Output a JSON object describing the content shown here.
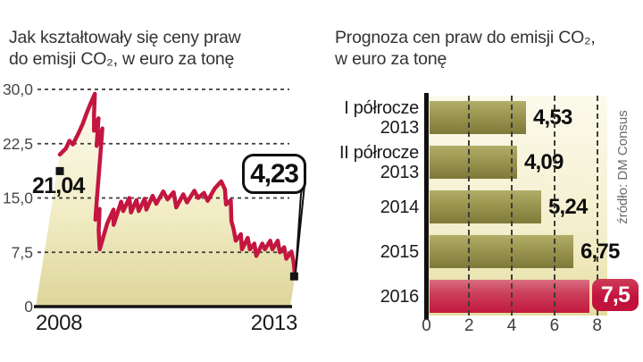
{
  "left_chart": {
    "title_line1": "Jak kształtowały się ceny praw",
    "title_line2": "do emisji CO₂, w euro za tonę",
    "y_ticks": [
      "30,0",
      "22,5",
      "15,0",
      "7,5",
      "0"
    ],
    "x_labels": {
      "start": "2008",
      "end": "2013"
    },
    "start_label": "21,04",
    "callout_label": "4,23"
  },
  "right_chart": {
    "title_line1": "Prognoza cen praw do emisji CO₂,",
    "title_line2": "w euro za tonę",
    "rows": [
      {
        "label_lines": [
          "I półrocze",
          "2013"
        ],
        "value": 4.53,
        "display": "4,53",
        "highlight": false
      },
      {
        "label_lines": [
          "II półrocze",
          "2013"
        ],
        "value": 4.09,
        "display": "4,09",
        "highlight": false
      },
      {
        "label_lines": [
          "2014"
        ],
        "value": 5.24,
        "display": "5,24",
        "highlight": false
      },
      {
        "label_lines": [
          "2015"
        ],
        "value": 6.75,
        "display": "6,75",
        "highlight": false
      },
      {
        "label_lines": [
          "2016"
        ],
        "value": 7.5,
        "display": "7,5",
        "highlight": true
      }
    ],
    "x_ticks": [
      {
        "label": "0",
        "value": 0
      },
      {
        "label": "2",
        "value": 2
      },
      {
        "label": "4",
        "value": 4
      },
      {
        "label": "6",
        "value": 6
      },
      {
        "label": "8",
        "value": 8
      }
    ],
    "source": "źródło: DM Consus"
  },
  "chart_data": [
    {
      "type": "area",
      "title": "Jak kształtowały się ceny praw do emisji CO₂, w euro za tonę",
      "xlabel": "",
      "ylabel": "euro za tonę",
      "x_range": [
        2008.0,
        2013.1
      ],
      "ylim": [
        0,
        30
      ],
      "y_tick_values": [
        30,
        22.5,
        15,
        7.5,
        0
      ],
      "grid": "dashed-horizontal",
      "annotations": [
        {
          "label": "21,04",
          "x": 2008.0,
          "y": 21.04
        },
        {
          "label": "4,23",
          "x": 2013.1,
          "y": 4.23
        }
      ],
      "points": [
        [
          2008.0,
          21.0
        ],
        [
          2008.1,
          21.8
        ],
        [
          2008.15,
          22.9
        ],
        [
          2008.23,
          22.4
        ],
        [
          2008.31,
          24.0
        ],
        [
          2008.36,
          25.2
        ],
        [
          2008.41,
          26.8
        ],
        [
          2008.46,
          28.2
        ],
        [
          2008.51,
          29.4
        ],
        [
          2008.56,
          26.5
        ],
        [
          2008.61,
          24.3
        ],
        [
          2008.66,
          26.0
        ],
        [
          2008.71,
          22.2
        ],
        [
          2008.77,
          24.6
        ],
        [
          2008.82,
          20.5
        ],
        [
          2008.87,
          16.0
        ],
        [
          2008.92,
          12.0
        ],
        [
          2008.97,
          13.5
        ],
        [
          2009.02,
          10.5
        ],
        [
          2009.1,
          7.9
        ],
        [
          2009.17,
          11.5
        ],
        [
          2009.25,
          13.4
        ],
        [
          2009.3,
          11.3
        ],
        [
          2009.38,
          14.5
        ],
        [
          2009.45,
          13.2
        ],
        [
          2009.53,
          15.0
        ],
        [
          2009.61,
          13.0
        ],
        [
          2009.68,
          14.7
        ],
        [
          2009.76,
          13.2
        ],
        [
          2009.84,
          14.9
        ],
        [
          2009.91,
          13.4
        ],
        [
          2009.99,
          15.3
        ],
        [
          2010.09,
          14.2
        ],
        [
          2010.19,
          15.9
        ],
        [
          2010.3,
          14.8
        ],
        [
          2010.4,
          15.8
        ],
        [
          2010.5,
          13.7
        ],
        [
          2010.6,
          15.5
        ],
        [
          2010.7,
          14.4
        ],
        [
          2010.81,
          16.0
        ],
        [
          2010.91,
          15.0
        ],
        [
          2011.01,
          15.7
        ],
        [
          2011.11,
          14.6
        ],
        [
          2011.21,
          16.3
        ],
        [
          2011.32,
          17.3
        ],
        [
          2011.42,
          16.2
        ],
        [
          2011.49,
          14.1
        ],
        [
          2011.57,
          14.7
        ],
        [
          2011.65,
          11.8
        ],
        [
          2011.72,
          10.7
        ],
        [
          2011.8,
          9.1
        ],
        [
          2011.88,
          10.0
        ],
        [
          2011.95,
          7.9
        ],
        [
          2012.03,
          9.5
        ],
        [
          2012.11,
          7.9
        ],
        [
          2012.18,
          8.7
        ],
        [
          2012.26,
          7.0
        ],
        [
          2012.34,
          8.7
        ],
        [
          2012.41,
          7.9
        ],
        [
          2012.49,
          9.1
        ],
        [
          2012.56,
          7.9
        ],
        [
          2012.64,
          9.1
        ],
        [
          2012.72,
          7.5
        ],
        [
          2012.79,
          8.2
        ],
        [
          2012.87,
          6.6
        ],
        [
          2012.95,
          7.6
        ],
        [
          2013.02,
          6.3
        ],
        [
          2013.1,
          4.23
        ]
      ]
    },
    {
      "type": "bar",
      "orientation": "horizontal",
      "title": "Prognoza cen praw do emisji CO₂, w euro za tonę",
      "categories": [
        "I półrocze 2013",
        "II półrocze 2013",
        "2014",
        "2015",
        "2016"
      ],
      "values": [
        4.53,
        4.09,
        5.24,
        6.75,
        7.5
      ],
      "xlim": [
        0,
        8
      ],
      "x_ticks": [
        0,
        2,
        4,
        6,
        8
      ],
      "grid": "dashed-vertical",
      "source": "źródło: DM Consus"
    }
  ],
  "colors": {
    "line_red": "#c31640",
    "bar_olive_top": "#b2ad68",
    "bar_olive_bottom": "#7f793a",
    "bar_red_top": "#d96d80",
    "bar_red_bottom": "#c11940",
    "badge_red": "#c1123c",
    "area_fill_top": "#fcfbf1",
    "area_fill_bottom": "#ddd59a",
    "plot_bg": "#f4efcd",
    "grid_dash": "#3c3c3c",
    "axis_black": "#101010",
    "text_dark": "#1a1a1a",
    "text_gray": "#6a6a6a"
  }
}
